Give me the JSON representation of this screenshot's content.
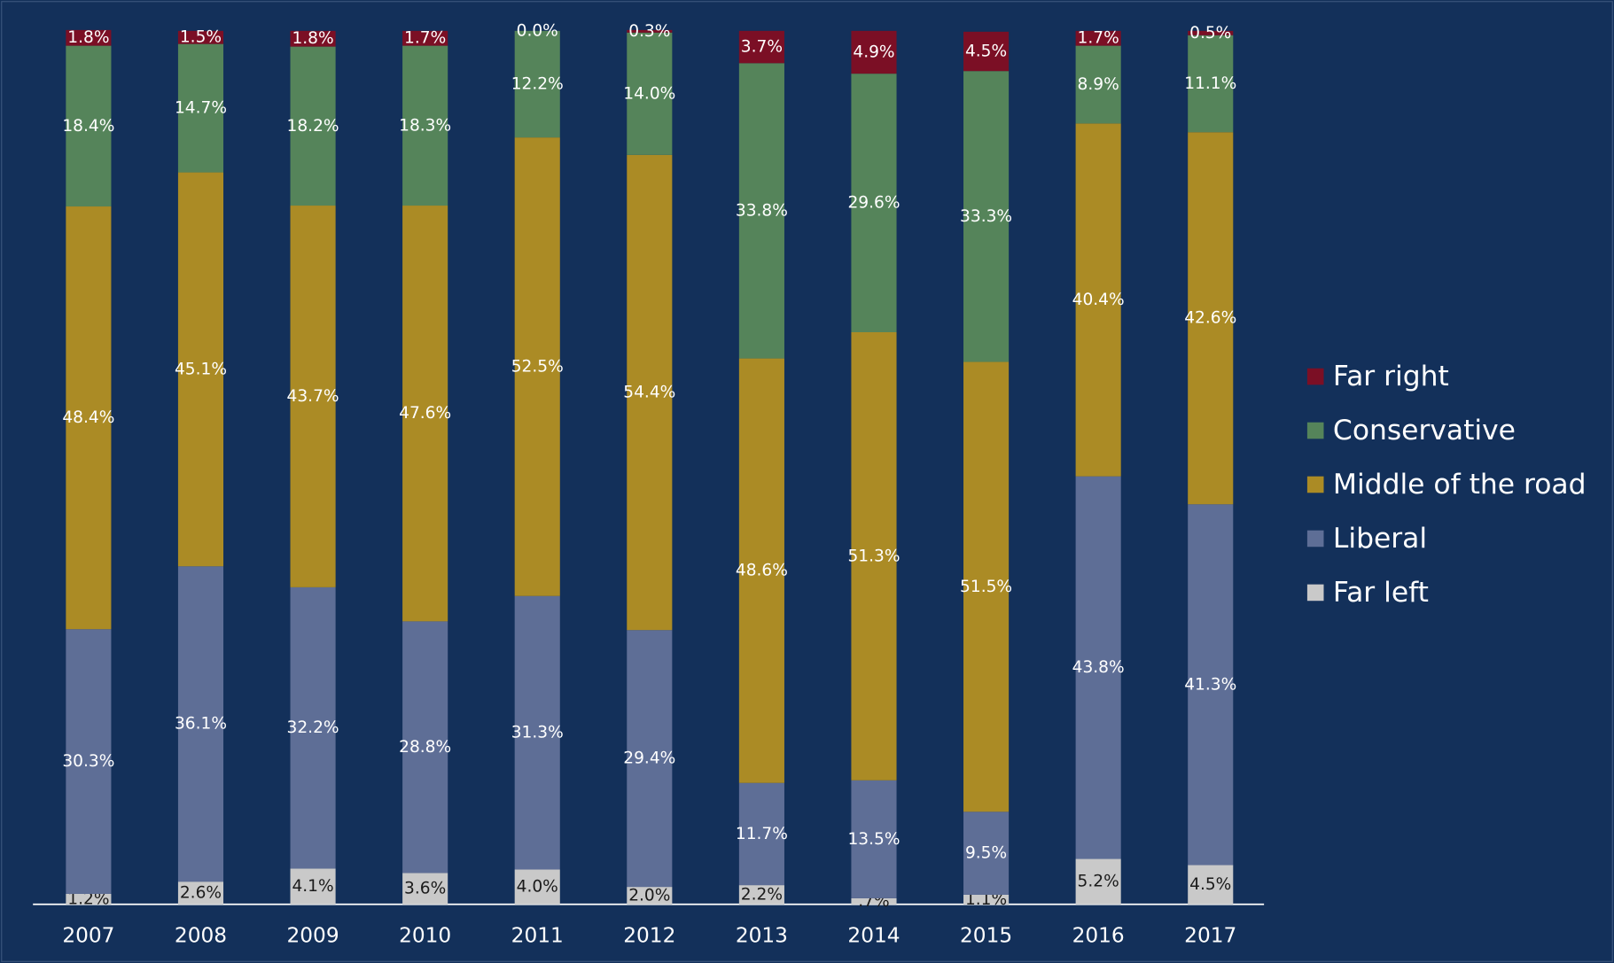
{
  "chart_data": {
    "type": "stacked_bar",
    "categories": [
      "2007",
      "2008",
      "2009",
      "2010",
      "2011",
      "2012",
      "2013",
      "2014",
      "2015",
      "2016",
      "2017"
    ],
    "ylim": [
      0,
      100
    ],
    "series": [
      {
        "name": "Far left",
        "color": "#c9c9c9",
        "values": [
          1.2,
          2.6,
          4.1,
          3.6,
          4.0,
          2.0,
          2.2,
          0.7,
          1.1,
          5.2,
          4.5
        ],
        "value_labels": [
          "1.2%",
          "2.6%",
          "4.1%",
          "3.6%",
          "4.0%",
          "2.0%",
          "2.2%",
          ".7%",
          "1.1%",
          "5.2%",
          "4.5%"
        ]
      },
      {
        "name": "Liberal",
        "color": "#5e6e96",
        "values": [
          30.3,
          36.1,
          32.2,
          28.8,
          31.3,
          29.4,
          11.7,
          13.5,
          9.5,
          43.8,
          41.3
        ],
        "value_labels": [
          "30.3%",
          "36.1%",
          "32.2%",
          "28.8%",
          "31.3%",
          "29.4%",
          "11.7%",
          "13.5%",
          "9.5%",
          "43.8%",
          "41.3%"
        ]
      },
      {
        "name": "Middle of the road",
        "color": "#ab8b25",
        "values": [
          48.4,
          45.1,
          43.7,
          47.6,
          52.5,
          54.4,
          48.6,
          51.3,
          51.5,
          40.4,
          42.6
        ],
        "value_labels": [
          "48.4%",
          "45.1%",
          "43.7%",
          "47.6%",
          "52.5%",
          "54.4%",
          "48.6%",
          "51.3%",
          "51.5%",
          "40.4%",
          "42.6%"
        ]
      },
      {
        "name": "Conservative",
        "color": "#55845a",
        "values": [
          18.4,
          14.7,
          18.2,
          18.3,
          12.2,
          14.0,
          33.8,
          29.6,
          33.3,
          8.9,
          11.1
        ],
        "value_labels": [
          "18.4%",
          "14.7%",
          "18.2%",
          "18.3%",
          "12.2%",
          "14.0%",
          "33.8%",
          "29.6%",
          "33.3%",
          "8.9%",
          "11.1%"
        ]
      },
      {
        "name": "Far right",
        "color": "#7b0f25",
        "values": [
          1.8,
          1.5,
          1.8,
          1.7,
          0.0,
          0.3,
          3.7,
          4.9,
          4.5,
          1.7,
          0.5
        ],
        "value_labels": [
          "1.8%",
          "1.5%",
          "1.8%",
          "1.7%",
          "0.0%",
          "0.3%",
          "3.7%",
          "4.9%",
          "4.5%",
          "1.7%",
          "0.5%"
        ]
      }
    ],
    "legend": "right"
  }
}
